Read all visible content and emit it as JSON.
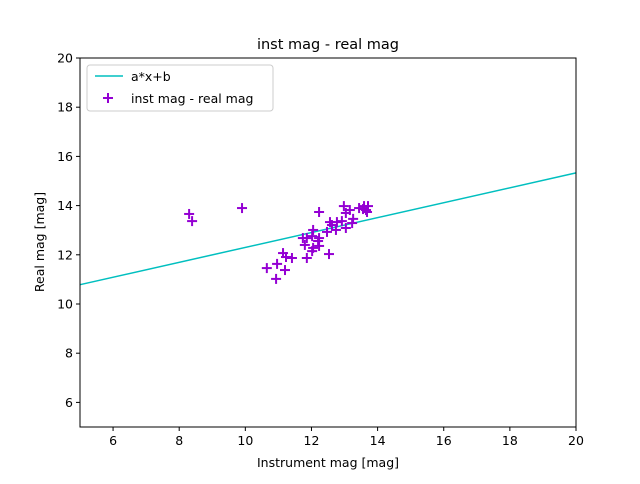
{
  "chart_data": {
    "type": "scatter",
    "title": "inst mag - real mag",
    "xlabel": "Instrument mag [mag]",
    "ylabel": "Real mag [mag]",
    "xlim": [
      5,
      20
    ],
    "ylim": [
      5,
      20
    ],
    "xticks": [
      6,
      8,
      10,
      12,
      14,
      16,
      18,
      20
    ],
    "yticks": [
      6,
      8,
      10,
      12,
      14,
      16,
      18,
      20
    ],
    "grid": false,
    "legend_position": "top-left",
    "fit_line": {
      "name": "a*x+b",
      "a": 0.303,
      "b": 9.27,
      "color": "#00bfbf"
    },
    "scatter": {
      "name": "inst mag - real mag",
      "color": "#9400d3",
      "x": [
        8.3,
        8.39,
        9.9,
        12.23,
        12.98,
        13.16,
        13.04,
        13.44,
        13.59,
        13.71,
        13.65,
        13.68,
        13.56,
        13.26,
        13.23,
        12.92,
        12.77,
        12.56,
        12.62,
        12.74,
        13.04,
        12.47,
        12.05,
        12.02,
        11.74,
        11.86,
        12.23,
        11.8,
        12.2,
        12.23,
        12.05,
        12.02,
        11.86,
        12.53,
        11.14,
        11.23,
        11.41,
        10.65,
        10.96,
        11.2,
        10.93
      ],
      "y": [
        13.66,
        13.37,
        13.9,
        13.74,
        13.98,
        13.82,
        13.7,
        13.9,
        13.98,
        13.98,
        13.82,
        13.74,
        13.86,
        13.46,
        13.29,
        13.37,
        13.33,
        13.33,
        13.21,
        13.01,
        13.09,
        12.93,
        13.01,
        12.76,
        12.68,
        12.68,
        12.68,
        12.4,
        12.56,
        12.36,
        12.28,
        12.15,
        11.87,
        12.03,
        12.07,
        11.91,
        11.87,
        11.46,
        11.63,
        11.38,
        11.02
      ]
    }
  }
}
